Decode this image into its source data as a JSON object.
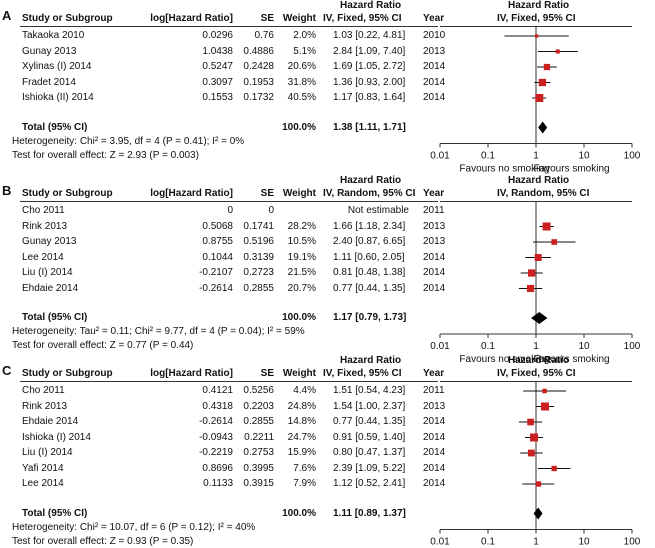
{
  "headers": {
    "study": "Study or Subgroup",
    "loghr": "log[Hazard Ratio]",
    "se": "SE",
    "weight": "Weight",
    "hr_title": "Hazard Ratio",
    "year": "Year",
    "plot_title": "Hazard Ratio"
  },
  "axis": {
    "ticks": [
      0.01,
      0.1,
      1,
      10,
      100
    ],
    "tick_labels": [
      "0.01",
      "0.1",
      "1",
      "10",
      "100"
    ],
    "left_label": "Favours no smoking",
    "right_label": "Favours smoking"
  },
  "colors": {
    "marker": "#cc1f1f",
    "diamond": "#000000",
    "line": "#333333"
  },
  "panels": [
    {
      "label": "A",
      "method": "IV, Fixed, 95% CI",
      "rows": [
        {
          "study": "Takaoka 2010",
          "loghr": "0.0296",
          "se": "0.76",
          "weight": "2.0%",
          "hr_text": "1.03 [0.22, 4.81]",
          "year": "2010",
          "hr": 1.03,
          "lo": 0.22,
          "hi": 4.81,
          "w": 2.0
        },
        {
          "study": "Gunay 2013",
          "loghr": "1.0438",
          "se": "0.4886",
          "weight": "5.1%",
          "hr_text": "2.84 [1.09, 7.40]",
          "year": "2013",
          "hr": 2.84,
          "lo": 1.09,
          "hi": 7.4,
          "w": 5.1
        },
        {
          "study": "Xylinas (I) 2014",
          "loghr": "0.5247",
          "se": "0.2428",
          "weight": "20.6%",
          "hr_text": "1.69 [1.05, 2.72]",
          "year": "2014",
          "hr": 1.69,
          "lo": 1.05,
          "hi": 2.72,
          "w": 20.6
        },
        {
          "study": "Fradet 2014",
          "loghr": "0.3097",
          "se": "0.1953",
          "weight": "31.8%",
          "hr_text": "1.36 [0.93, 2.00]",
          "year": "2014",
          "hr": 1.36,
          "lo": 0.93,
          "hi": 2.0,
          "w": 31.8
        },
        {
          "study": "Ishioka (II) 2014",
          "loghr": "0.1553",
          "se": "0.1732",
          "weight": "40.5%",
          "hr_text": "1.17 [0.83, 1.64]",
          "year": "2014",
          "hr": 1.17,
          "lo": 0.83,
          "hi": 1.64,
          "w": 40.5
        }
      ],
      "total": {
        "label": "Total (95% CI)",
        "weight": "100.0%",
        "hr_text": "1.38 [1.11, 1.71]",
        "hr": 1.38,
        "lo": 1.11,
        "hi": 1.71
      },
      "heterogeneity": "Heterogeneity: Chi² = 3.95, df = 4 (P = 0.41); I² = 0%",
      "overall": "Test for overall effect: Z = 2.93 (P = 0.003)"
    },
    {
      "label": "B",
      "method": "IV, Random, 95% CI",
      "rows": [
        {
          "study": "Cho 2011",
          "loghr": "0",
          "se": "0",
          "weight": "",
          "hr_text": "Not estimable",
          "year": "2011",
          "hr": null,
          "lo": null,
          "hi": null,
          "w": 0
        },
        {
          "study": "Rink 2013",
          "loghr": "0.5068",
          "se": "0.1741",
          "weight": "28.2%",
          "hr_text": "1.66 [1.18, 2.34]",
          "year": "2013",
          "hr": 1.66,
          "lo": 1.18,
          "hi": 2.34,
          "w": 28.2
        },
        {
          "study": "Gunay 2013",
          "loghr": "0.8755",
          "se": "0.5196",
          "weight": "10.5%",
          "hr_text": "2.40 [0.87, 6.65]",
          "year": "2013",
          "hr": 2.4,
          "lo": 0.87,
          "hi": 6.65,
          "w": 10.5
        },
        {
          "study": "Lee 2014",
          "loghr": "0.1044",
          "se": "0.3139",
          "weight": "19.1%",
          "hr_text": "1.11 [0.60, 2.05]",
          "year": "2014",
          "hr": 1.11,
          "lo": 0.6,
          "hi": 2.05,
          "w": 19.1
        },
        {
          "study": "Liu (I) 2014",
          "loghr": "-0.2107",
          "se": "0.2723",
          "weight": "21.5%",
          "hr_text": "0.81 [0.48, 1.38]",
          "year": "2014",
          "hr": 0.81,
          "lo": 0.48,
          "hi": 1.38,
          "w": 21.5
        },
        {
          "study": "Ehdaie 2014",
          "loghr": "-0.2614",
          "se": "0.2855",
          "weight": "20.7%",
          "hr_text": "0.77 [0.44, 1.35]",
          "year": "2014",
          "hr": 0.77,
          "lo": 0.44,
          "hi": 1.35,
          "w": 20.7
        }
      ],
      "total": {
        "label": "Total (95% CI)",
        "weight": "100.0%",
        "hr_text": "1.17 [0.79, 1.73]",
        "hr": 1.17,
        "lo": 0.79,
        "hi": 1.73
      },
      "heterogeneity": "Heterogeneity: Tau² = 0.11; Chi² = 9.77, df = 4 (P = 0.04); I² = 59%",
      "overall": "Test for overall effect: Z = 0.77 (P = 0.44)"
    },
    {
      "label": "C",
      "method": "IV, Fixed, 95% CI",
      "rows": [
        {
          "study": "Cho 2011",
          "loghr": "0.4121",
          "se": "0.5256",
          "weight": "4.4%",
          "hr_text": "1.51 [0.54, 4.23]",
          "year": "2011",
          "hr": 1.51,
          "lo": 0.54,
          "hi": 4.23,
          "w": 4.4
        },
        {
          "study": "Rink 2013",
          "loghr": "0.4318",
          "se": "0.2203",
          "weight": "24.8%",
          "hr_text": "1.54 [1.00, 2.37]",
          "year": "2013",
          "hr": 1.54,
          "lo": 1.0,
          "hi": 2.37,
          "w": 24.8
        },
        {
          "study": "Ehdaie 2014",
          "loghr": "-0.2614",
          "se": "0.2855",
          "weight": "14.8%",
          "hr_text": "0.77 [0.44, 1.35]",
          "year": "2014",
          "hr": 0.77,
          "lo": 0.44,
          "hi": 1.35,
          "w": 14.8
        },
        {
          "study": "Ishioka (I) 2014",
          "loghr": "-0.0943",
          "se": "0.2211",
          "weight": "24.7%",
          "hr_text": "0.91 [0.59, 1.40]",
          "year": "2014",
          "hr": 0.91,
          "lo": 0.59,
          "hi": 1.4,
          "w": 24.7
        },
        {
          "study": "Liu (I) 2014",
          "loghr": "-0.2219",
          "se": "0.2753",
          "weight": "15.9%",
          "hr_text": "0.80 [0.47, 1.37]",
          "year": "2014",
          "hr": 0.8,
          "lo": 0.47,
          "hi": 1.37,
          "w": 15.9
        },
        {
          "study": "Yafi 2014",
          "loghr": "0.8696",
          "se": "0.3995",
          "weight": "7.6%",
          "hr_text": "2.39 [1.09, 5.22]",
          "year": "2014",
          "hr": 2.39,
          "lo": 1.09,
          "hi": 5.22,
          "w": 7.6
        },
        {
          "study": "Lee 2014",
          "loghr": "0.1133",
          "se": "0.3915",
          "weight": "7.9%",
          "hr_text": "1.12 [0.52, 2.41]",
          "year": "2014",
          "hr": 1.12,
          "lo": 0.52,
          "hi": 2.41,
          "w": 7.9
        }
      ],
      "total": {
        "label": "Total (95% CI)",
        "weight": "100.0%",
        "hr_text": "1.11 [0.89, 1.37]",
        "hr": 1.11,
        "lo": 0.89,
        "hi": 1.37
      },
      "heterogeneity": "Heterogeneity: Chi² = 10.07, df = 6 (P = 0.12); I² = 40%",
      "overall": "Test for overall effect: Z = 0.93 (P = 0.35)"
    }
  ],
  "chart_data": [
    {
      "type": "forest",
      "panel": "A",
      "title": "Hazard Ratio",
      "method": "IV, Fixed, 95% CI",
      "xscale": "log",
      "xlim": [
        0.01,
        100
      ],
      "series": [
        {
          "name": "studies",
          "values": [
            1.03,
            2.84,
            1.69,
            1.36,
            1.17
          ]
        }
      ],
      "pooled": 1.38
    },
    {
      "type": "forest",
      "panel": "B",
      "title": "Hazard Ratio",
      "method": "IV, Random, 95% CI",
      "xscale": "log",
      "xlim": [
        0.01,
        100
      ],
      "series": [
        {
          "name": "studies",
          "values": [
            null,
            1.66,
            2.4,
            1.11,
            0.81,
            0.77
          ]
        }
      ],
      "pooled": 1.17
    },
    {
      "type": "forest",
      "panel": "C",
      "title": "Hazard Ratio",
      "method": "IV, Fixed, 95% CI",
      "xscale": "log",
      "xlim": [
        0.01,
        100
      ],
      "series": [
        {
          "name": "studies",
          "values": [
            1.51,
            1.54,
            0.77,
            0.91,
            0.8,
            2.39,
            1.12
          ]
        }
      ],
      "pooled": 1.11
    }
  ]
}
